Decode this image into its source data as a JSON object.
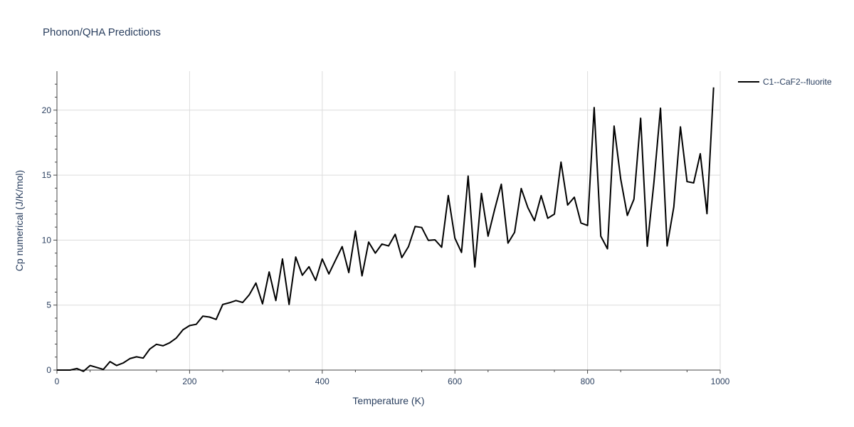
{
  "chart_data": {
    "type": "line",
    "title": "Phonon/QHA Predictions",
    "xlabel": "Temperature (K)",
    "ylabel": "Cp numerical (J/K/mol)",
    "xlim": [
      0,
      1000
    ],
    "ylim": [
      0,
      23
    ],
    "xticks": [
      0,
      200,
      400,
      600,
      800,
      1000
    ],
    "yticks": [
      0,
      5,
      10,
      15,
      20
    ],
    "grid": true,
    "legend_position": "top-right",
    "series": [
      {
        "name": "C1--CaF2--fluorite",
        "color": "#000000",
        "x": [
          0,
          10,
          20,
          30,
          40,
          50,
          60,
          70,
          80,
          90,
          100,
          110,
          120,
          130,
          140,
          150,
          160,
          170,
          180,
          190,
          200,
          210,
          220,
          230,
          240,
          250,
          260,
          270,
          280,
          290,
          300,
          310,
          320,
          330,
          340,
          350,
          360,
          370,
          380,
          390,
          400,
          410,
          420,
          430,
          440,
          450,
          460,
          470,
          480,
          490,
          500,
          510,
          520,
          530,
          540,
          550,
          560,
          570,
          580,
          590,
          600,
          610,
          620,
          630,
          640,
          650,
          660,
          670,
          680,
          690,
          700,
          710,
          720,
          730,
          740,
          750,
          760,
          770,
          780,
          790,
          800,
          810,
          820,
          830,
          840,
          850,
          860,
          870,
          880,
          890,
          900,
          910,
          920,
          930,
          940,
          950,
          960,
          970,
          980,
          990
        ],
        "y": [
          0,
          0,
          0,
          0.12,
          -0.1,
          0.35,
          0.2,
          0.05,
          0.65,
          0.35,
          0.55,
          0.88,
          1.02,
          0.92,
          1.62,
          1.98,
          1.87,
          2.1,
          2.47,
          3.1,
          3.42,
          3.52,
          4.15,
          4.08,
          3.9,
          5.05,
          5.18,
          5.35,
          5.2,
          5.8,
          6.7,
          5.1,
          7.55,
          5.35,
          8.55,
          5.05,
          8.7,
          7.3,
          7.95,
          6.9,
          8.55,
          7.4,
          8.45,
          9.5,
          7.5,
          10.7,
          7.25,
          9.85,
          9.0,
          9.7,
          9.55,
          10.45,
          8.65,
          9.5,
          11.05,
          10.97,
          9.98,
          10.02,
          9.45,
          13.43,
          10.15,
          9.05,
          14.93,
          7.93,
          13.6,
          10.3,
          12.37,
          14.3,
          9.77,
          10.6,
          13.97,
          12.5,
          11.5,
          13.42,
          11.68,
          12.0,
          16.0,
          12.7,
          13.3,
          11.32,
          11.13,
          20.2,
          10.3,
          9.33,
          18.78,
          14.7,
          11.9,
          13.15,
          19.38,
          9.53,
          14.4,
          20.15,
          9.55,
          12.55,
          18.72,
          14.5,
          14.4,
          16.65,
          12.03,
          21.75
        ]
      }
    ]
  }
}
